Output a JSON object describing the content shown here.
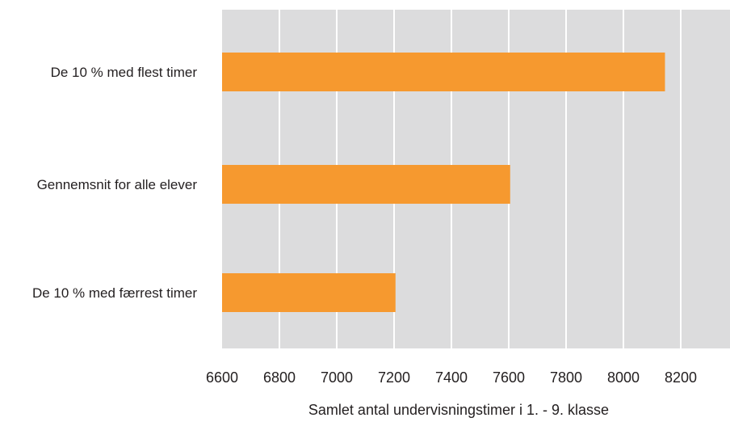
{
  "chart_data": {
    "type": "bar",
    "orientation": "horizontal",
    "categories": [
      "De 10 % med flest timer",
      "Gennemsnit for alle elever",
      "De 10 % med færrest timer"
    ],
    "values": [
      8145,
      7605,
      7205
    ],
    "xlabel": "Samlet antal undervisningstimer i 1. - 9. klasse",
    "ylabel": "",
    "xlim": [
      6600,
      8400
    ],
    "xticks": [
      6600,
      6800,
      7000,
      7200,
      7400,
      7600,
      7800,
      8000,
      8200
    ],
    "grid": true,
    "legend": "none"
  },
  "colors": {
    "bar": "#f6992f",
    "plot_background": "#dcdcdd",
    "gridline": "#ffffff",
    "text": "#231f20"
  }
}
